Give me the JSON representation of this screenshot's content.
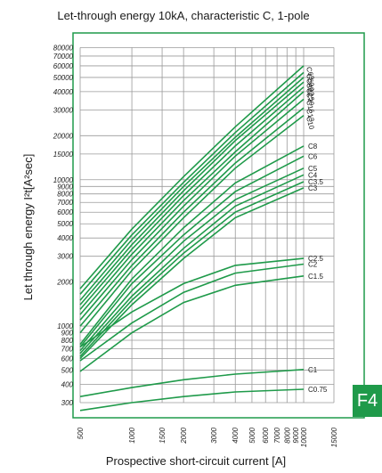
{
  "section_badge": "F4",
  "chart_data": {
    "type": "line",
    "title": "Let-through energy 10kA, characteristic C, 1-pole",
    "xlabel": "Prospective short-circuit current [A]",
    "ylabel": "Let through energy I²t[A²sec]",
    "x_scale": "log",
    "y_scale": "log",
    "xlim": [
      500,
      15000
    ],
    "ylim": [
      250,
      90000
    ],
    "grid": true,
    "line_color": "#1f9a4a",
    "x_ticks": [
      500,
      1000,
      1500,
      2000,
      3000,
      4000,
      5000,
      6000,
      7000,
      8000,
      9000,
      10000,
      15000
    ],
    "x_tick_labels": [
      "500",
      "1000",
      "1500",
      "2000",
      "3000",
      "4000",
      "5000",
      "6000",
      "7000",
      "8000",
      "9000",
      "10000",
      "15000"
    ],
    "y_ticks": [
      300,
      400,
      500,
      600,
      700,
      800,
      900,
      1000,
      2000,
      3000,
      4000,
      5000,
      6000,
      7000,
      8000,
      9000,
      10000,
      15000,
      20000,
      30000,
      40000,
      50000,
      60000,
      70000,
      80000
    ],
    "y_tick_labels": [
      "300",
      "400",
      "500",
      "600",
      "700",
      "800",
      "900",
      "1000",
      "2000",
      "3000",
      "4000",
      "5000",
      "6000",
      "7000",
      "8000",
      "9000",
      "10000",
      "15000",
      "20000",
      "30000",
      "40000",
      "50000",
      "60000",
      "70000",
      "80000"
    ],
    "series": [
      {
        "name": "C63",
        "x": [
          500,
          1000,
          2000,
          4000,
          10000
        ],
        "y": [
          1800,
          4600,
          10500,
          23000,
          60000
        ]
      },
      {
        "name": "C50",
        "x": [
          500,
          1000,
          2000,
          4000,
          10000
        ],
        "y": [
          1650,
          4200,
          9600,
          21000,
          54000
        ]
      },
      {
        "name": "C40",
        "x": [
          500,
          1000,
          2000,
          4000,
          10000
        ],
        "y": [
          1500,
          3900,
          9000,
          19500,
          50000
        ]
      },
      {
        "name": "C32",
        "x": [
          500,
          1000,
          2000,
          4000,
          10000
        ],
        "y": [
          1400,
          3600,
          8400,
          18500,
          46500
        ]
      },
      {
        "name": "C25",
        "x": [
          500,
          1000,
          2000,
          4000,
          10000
        ],
        "y": [
          1300,
          3350,
          7800,
          17000,
          43000
        ]
      },
      {
        "name": "C20",
        "x": [
          500,
          1000,
          2000,
          4000,
          10000
        ],
        "y": [
          1200,
          3100,
          7200,
          15500,
          40000
        ]
      },
      {
        "name": "C16",
        "x": [
          500,
          1000,
          2000,
          4000,
          10000
        ],
        "y": [
          1100,
          2850,
          6600,
          14500,
          35500
        ]
      },
      {
        "name": "C13",
        "x": [
          500,
          1000,
          2000,
          4000,
          10000
        ],
        "y": [
          1000,
          2600,
          6000,
          13000,
          31000
        ]
      },
      {
        "name": "C10",
        "x": [
          500,
          1000,
          2000,
          4000,
          10000
        ],
        "y": [
          900,
          2400,
          5500,
          12000,
          27500
        ]
      },
      {
        "name": "C8",
        "x": [
          500,
          1000,
          2000,
          4000,
          10000
        ],
        "y": [
          750,
          2100,
          4700,
          9500,
          17000
        ]
      },
      {
        "name": "C6",
        "x": [
          500,
          1000,
          2000,
          4000,
          10000
        ],
        "y": [
          720,
          1950,
          4200,
          8300,
          14500
        ]
      },
      {
        "name": "C5",
        "x": [
          500,
          1000,
          2000,
          4000,
          10000
        ],
        "y": [
          680,
          1750,
          3800,
          7300,
          12000
        ]
      },
      {
        "name": "C4",
        "x": [
          500,
          1000,
          2000,
          4000,
          10000
        ],
        "y": [
          650,
          1600,
          3400,
          6600,
          10800
        ]
      },
      {
        "name": "C3.5",
        "x": [
          500,
          1000,
          2000,
          4000,
          10000
        ],
        "y": [
          620,
          1500,
          3150,
          6000,
          9700
        ]
      },
      {
        "name": "C3",
        "x": [
          500,
          1000,
          2000,
          4000,
          10000
        ],
        "y": [
          600,
          1400,
          2900,
          5500,
          8800
        ]
      },
      {
        "name": "C2.5",
        "x": [
          500,
          1000,
          2000,
          4000,
          10000
        ],
        "y": [
          720,
          1250,
          1950,
          2600,
          2900
        ]
      },
      {
        "name": "C2",
        "x": [
          500,
          1000,
          2000,
          4000,
          10000
        ],
        "y": [
          580,
          1050,
          1700,
          2300,
          2650
        ]
      },
      {
        "name": "C1.5",
        "x": [
          500,
          1000,
          2000,
          4000,
          10000
        ],
        "y": [
          490,
          900,
          1450,
          1900,
          2200
        ]
      },
      {
        "name": "C1",
        "x": [
          500,
          1000,
          2000,
          4000,
          10000
        ],
        "y": [
          330,
          380,
          430,
          470,
          505
        ]
      },
      {
        "name": "C0.75",
        "x": [
          500,
          1000,
          2000,
          4000,
          10000
        ],
        "y": [
          265,
          300,
          330,
          355,
          370
        ]
      }
    ]
  }
}
